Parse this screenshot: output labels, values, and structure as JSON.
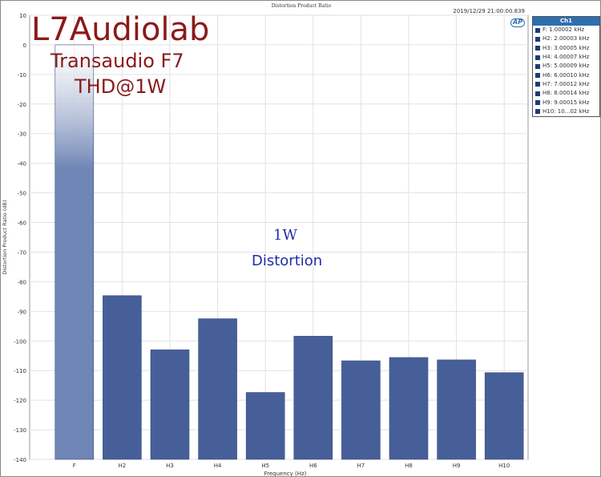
{
  "chart_data": {
    "type": "bar",
    "title": "Distortion Product Ratio",
    "timestamp": "2019/12/29 21:00:00.839",
    "xlabel": "Frequency (Hz)",
    "ylabel": "Distortion Product Ratio (dB)",
    "ylim": [
      -140,
      10
    ],
    "yticks": [
      10,
      0,
      -10,
      -20,
      -30,
      -40,
      -50,
      -60,
      -70,
      -80,
      -90,
      -100,
      -110,
      -120,
      -130,
      -140
    ],
    "grid": true,
    "categories": [
      "F",
      "H2",
      "H3",
      "H4",
      "H5",
      "H6",
      "H7",
      "H8",
      "H9",
      "H10"
    ],
    "values": [
      0,
      -84.7,
      -103,
      -92.5,
      -117.4,
      -98.4,
      -106.7,
      -105.6,
      -106.4,
      -110.7
    ],
    "bar_color": "#475f99",
    "legend": {
      "position": "right",
      "header": "Ch1",
      "entries": [
        "F: 1.00002 kHz",
        "H2: 2.00003 kHz",
        "H3: 3.00005 kHz",
        "H4: 4.00007 kHz",
        "H5: 5.00009 kHz",
        "H6: 6.00010 kHz",
        "H7: 7.00012 kHz",
        "H8: 8.00014 kHz",
        "H9: 9.00015 kHz",
        "H10: 10...02 kHz"
      ]
    }
  },
  "overlay": {
    "brand": "L7Audiolab",
    "model": "Transaudio F7",
    "test": "THD@1W",
    "power": "1W",
    "caption": "Distortion"
  },
  "logo": "AP"
}
